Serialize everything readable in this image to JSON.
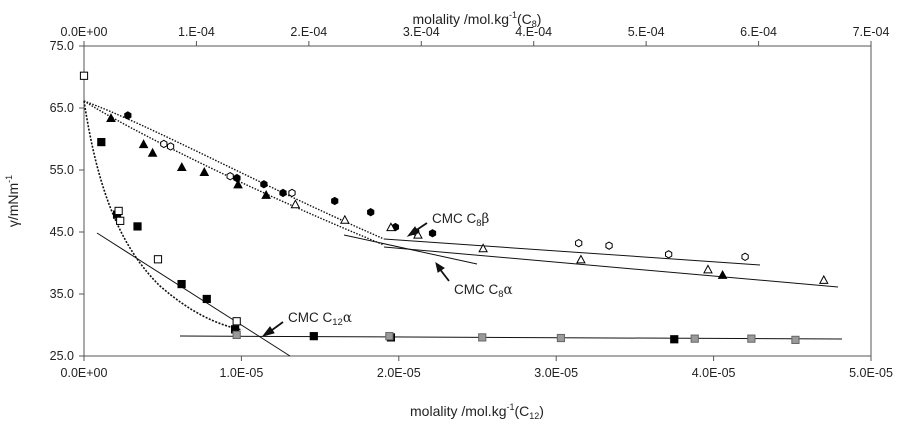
{
  "chart_data": {
    "type": "scatter",
    "x_bottom": {
      "label": "molality /mol.kg",
      "label_sup": "-1",
      "label_suffix": "(C",
      "label_sub": "12",
      "label_end": ")",
      "range": [
        0,
        5e-05
      ],
      "ticks": [
        "0.0E+00",
        "1.0E-05",
        "2.0E-05",
        "3.0E-05",
        "4.0E-05",
        "5.0E-05"
      ]
    },
    "x_top": {
      "label": "molality /mol.kg",
      "label_sup": "-1",
      "label_suffix": "(C",
      "label_sub": "8",
      "label_end": ")",
      "range": [
        0,
        0.0007
      ],
      "ticks": [
        "0.0E+00",
        "1.E-04",
        "2.E-04",
        "3.E-04",
        "4.E-04",
        "5.E-04",
        "6.E-04",
        "7.E-04"
      ]
    },
    "y": {
      "label": "γ/mNm",
      "label_sup": "-1",
      "range": [
        25,
        75
      ],
      "ticks": [
        "25.0",
        "35.0",
        "45.0",
        "55.0",
        "65.0",
        "75.0"
      ]
    },
    "grid": false,
    "series": [
      {
        "axis": "top",
        "marker": "hexagon-filled",
        "color": "#000000",
        "x": [
          3.9e-05,
          0.000136,
          0.00016,
          0.000177,
          0.000223,
          0.000255,
          0.000277,
          0.00031
        ],
        "y": [
          63.8,
          53.7,
          52.7,
          51.3,
          50.0,
          48.2,
          45.8,
          44.8
        ]
      },
      {
        "axis": "top",
        "marker": "hexagon-open",
        "color": "#000000",
        "x": [
          7.1e-05,
          7.7e-05,
          0.00013,
          0.000185,
          0.000295,
          0.00044,
          0.000467,
          0.00052,
          0.000588
        ],
        "y": [
          59.2,
          58.8,
          54.0,
          51.3,
          45.0,
          43.2,
          42.8,
          41.4,
          41.0
        ]
      },
      {
        "axis": "top",
        "marker": "triangle-filled",
        "color": "#000000",
        "x": [
          2.4e-05,
          5.3e-05,
          6.1e-05,
          8.7e-05,
          0.000107,
          0.000137,
          0.000162,
          0.000568
        ],
        "y": [
          63.3,
          59.1,
          57.7,
          55.4,
          54.6,
          52.6,
          50.9,
          38.0
        ]
      },
      {
        "axis": "top",
        "marker": "triangle-open",
        "color": "#000000",
        "x": [
          0.000188,
          0.000232,
          0.000273,
          0.000297,
          0.000355,
          0.000442,
          0.000555,
          0.000658
        ],
        "y": [
          49.4,
          46.9,
          45.7,
          44.5,
          42.3,
          40.5,
          38.9,
          37.2
        ]
      },
      {
        "axis": "bottom",
        "marker": "square-filled",
        "color": "#000000",
        "x": [
          1.1e-06,
          2.1e-06,
          3.4e-06,
          6.2e-06,
          7.8e-06,
          9.6e-06,
          1.46e-05,
          1.95e-05,
          3.75e-05
        ],
        "y": [
          59.5,
          47.8,
          45.9,
          36.6,
          34.2,
          29.3,
          28.2,
          28.0,
          27.7
        ]
      },
      {
        "axis": "bottom",
        "marker": "square-open",
        "color": "#000000",
        "x": [
          0.0,
          2.2e-06,
          2.3e-06,
          4.7e-06,
          9.7e-06
        ],
        "y": [
          70.2,
          48.4,
          46.8,
          40.6,
          30.6
        ]
      },
      {
        "axis": "bottom",
        "marker": "square-grey",
        "color": "#9a9a9a",
        "x": [
          9.7e-06,
          1.94e-05,
          2.53e-05,
          3.03e-05,
          3.88e-05,
          4.24e-05,
          4.52e-05
        ],
        "y": [
          28.4,
          28.2,
          28.0,
          27.9,
          27.8,
          27.8,
          27.6
        ]
      }
    ],
    "annotations": [
      {
        "text": "CMC C",
        "sub": "8",
        "greek": "β"
      },
      {
        "text": "CMC C",
        "sub": "8",
        "greek": "α"
      },
      {
        "text": "CMC C",
        "sub": "12",
        "greek": "α"
      }
    ]
  }
}
